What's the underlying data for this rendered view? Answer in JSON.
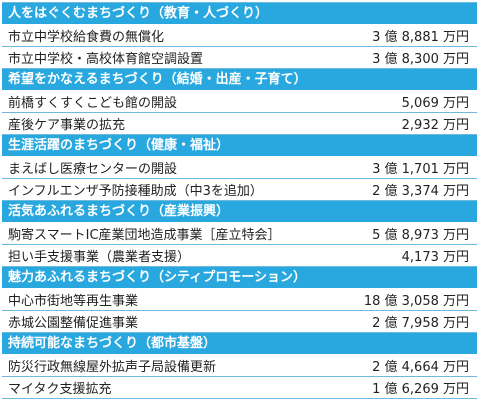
{
  "sections": [
    {
      "title": "人をはぐくむまちづくり（教育・人づくり）",
      "items": [
        {
          "name": "市立中学校給食費の無償化",
          "amount": "3 億 8,881 万円"
        },
        {
          "name": "市立中学校・高校体育館空調設置",
          "amount": "3 億 8,300 万円"
        }
      ]
    },
    {
      "title": "希望をかなえるまちづくり（結婚・出産・子育て）",
      "items": [
        {
          "name": "前橋すくすくこども館の開設",
          "amount": "5,069 万円"
        },
        {
          "name": "産後ケア事業の拡充",
          "amount": "2,932 万円"
        }
      ]
    },
    {
      "title": "生涯活躍のまちづくり（健康・福祉）",
      "items": [
        {
          "name": "まえばし医療センターの開設",
          "amount": "3 億 1,701 万円"
        },
        {
          "name": "インフルエンザ予防接種助成（中3を追加）",
          "amount": "2 億 3,374 万円"
        }
      ]
    },
    {
      "title": "活気あふれるまちづくり（産業振興）",
      "items": [
        {
          "name": "駒寄スマートIC産業団地造成事業［産立特会］",
          "amount": "5 億 8,973 万円"
        },
        {
          "name": "担い手支援事業（農業者支援）",
          "amount": "4,173 万円"
        }
      ]
    },
    {
      "title": "魅力あふれるまちづくり（シティプロモーション）",
      "items": [
        {
          "name": "中心市街地等再生事業",
          "amount": "18 億 3,058 万円"
        },
        {
          "name": "赤城公園整備促進事業",
          "amount": "2 億 7,958 万円"
        }
      ]
    },
    {
      "title": "持続可能なまちづくり（都市基盤）",
      "items": [
        {
          "name": "防災行政無線屋外拡声子局設備更新",
          "amount": "2 億 4,664 万円"
        },
        {
          "name": "マイタク支援拡充",
          "amount": "1 億 6,269 万円"
        }
      ]
    }
  ],
  "colors": {
    "header_bg": "#29a8df",
    "border": "#6fb8de"
  }
}
